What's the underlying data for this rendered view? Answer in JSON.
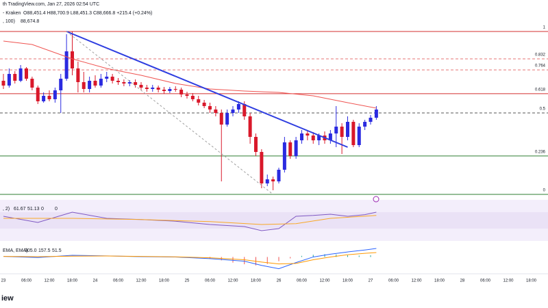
{
  "chart_data": {
    "type": "candlestick",
    "header": "th TradingView.com, Jan 27, 2026 02:54 UTC",
    "symbol": "- Kraken",
    "ohlc_text": "O88,451.4 H88,700.9 L88,451.3 C88,666.8 +215.4 (+0.24%)",
    "ma_label": ", 100)",
    "ma_value": "88,674.8",
    "rsi_label": ", 2)",
    "rsi_values_text": [
      "61.67",
      "51.13",
      "0",
      "0"
    ],
    "macd_label": "EMA, EMA)",
    "macd_values_text": [
      "305.0",
      "157.5",
      "51.5"
    ],
    "footer": "iew",
    "up_color": "#2a2ae0",
    "down_color": "#d9182a",
    "ylim": [
      86780,
      91100
    ],
    "ohlc": [
      [
        89330,
        89480,
        89150,
        89225
      ],
      [
        89225,
        89600,
        89180,
        89480
      ],
      [
        89480,
        89540,
        89270,
        89330
      ],
      [
        89330,
        89675,
        89300,
        89600
      ],
      [
        89600,
        89630,
        89330,
        89375
      ],
      [
        89375,
        89420,
        89120,
        89180
      ],
      [
        89180,
        89225,
        88820,
        88880
      ],
      [
        88880,
        89075,
        88850,
        89000
      ],
      [
        89000,
        89120,
        88880,
        88925
      ],
      [
        88925,
        89180,
        88850,
        89120
      ],
      [
        89120,
        89480,
        88625,
        89375
      ],
      [
        89375,
        90350,
        89330,
        89975
      ],
      [
        89975,
        90410,
        89450,
        89600
      ],
      [
        89600,
        89750,
        89075,
        89300
      ],
      [
        89300,
        89525,
        89075,
        89150
      ],
      [
        89150,
        89420,
        89075,
        89330
      ],
      [
        89330,
        89450,
        89180,
        89225
      ],
      [
        89225,
        89480,
        89180,
        89375
      ],
      [
        89375,
        89525,
        89300,
        89420
      ],
      [
        89420,
        89480,
        89270,
        89330
      ],
      [
        89330,
        89390,
        89240,
        89300
      ],
      [
        89300,
        89360,
        89210,
        89270
      ],
      [
        89270,
        89345,
        89210,
        89300
      ],
      [
        89300,
        89360,
        89180,
        89240
      ],
      [
        89240,
        89300,
        89120,
        89180
      ],
      [
        89180,
        89240,
        89090,
        89150
      ],
      [
        89150,
        89240,
        89090,
        89180
      ],
      [
        89180,
        89225,
        89075,
        89135
      ],
      [
        89135,
        89195,
        89045,
        89105
      ],
      [
        89105,
        89195,
        89060,
        89150
      ],
      [
        89150,
        89210,
        89090,
        89135
      ],
      [
        89135,
        89180,
        88970,
        89030
      ],
      [
        89030,
        89090,
        88940,
        89000
      ],
      [
        89000,
        89060,
        88880,
        88925
      ],
      [
        88925,
        89000,
        88790,
        88850
      ],
      [
        88850,
        88910,
        88730,
        88775
      ],
      [
        88775,
        88850,
        88625,
        88700
      ],
      [
        88700,
        88775,
        88550,
        88625
      ],
      [
        88625,
        88700,
        87125,
        88370
      ],
      [
        88370,
        88700,
        88325,
        88625
      ],
      [
        88625,
        88775,
        88550,
        88700
      ],
      [
        88700,
        88880,
        88625,
        88820
      ],
      [
        88820,
        88880,
        88475,
        88550
      ],
      [
        88550,
        88625,
        87950,
        88100
      ],
      [
        88100,
        88175,
        87680,
        87770
      ],
      [
        87770,
        87830,
        86975,
        87080
      ],
      [
        87080,
        87275,
        87020,
        87170
      ],
      [
        87170,
        87230,
        86930,
        87125
      ],
      [
        87125,
        87425,
        87080,
        87380
      ],
      [
        87380,
        88100,
        87320,
        87980
      ],
      [
        87980,
        88025,
        87620,
        87680
      ],
      [
        87680,
        88100,
        87620,
        88025
      ],
      [
        88025,
        88250,
        87950,
        88175
      ],
      [
        88175,
        88250,
        88025,
        88130
      ],
      [
        88130,
        88205,
        87950,
        88025
      ],
      [
        88025,
        88175,
        87920,
        88130
      ],
      [
        88130,
        88220,
        87950,
        88025
      ],
      [
        88025,
        88250,
        87950,
        88175
      ],
      [
        88175,
        88775,
        87875,
        88325
      ],
      [
        88325,
        88400,
        87725,
        88100
      ],
      [
        88100,
        88550,
        88025,
        88430
      ],
      [
        88430,
        88475,
        87875,
        87920
      ],
      [
        87920,
        88400,
        87875,
        88325
      ],
      [
        88325,
        88475,
        88250,
        88430
      ],
      [
        88430,
        88580,
        88370,
        88520
      ],
      [
        88520,
        88775,
        88475,
        88700
      ]
    ],
    "lines": [
      {
        "color": "#ef5350",
        "width": 1,
        "dash": false,
        "x": [
          0,
          5,
          12,
          18,
          24,
          30,
          36,
          42,
          48,
          54,
          60,
          65
        ],
        "values": [
          90200,
          90125,
          89810,
          89600,
          89450,
          89270,
          89150,
          89105,
          89075,
          89000,
          88850,
          88730
        ]
      },
      {
        "color": "#2e3de0",
        "width": 2,
        "dash": false,
        "x": [
          11,
          60
        ],
        "values": [
          90410,
          87875
        ]
      },
      {
        "color": "#9e9e9e",
        "width": 1,
        "dash": true,
        "x": [
          11,
          47
        ],
        "values": [
          90410,
          86840
        ]
      }
    ],
    "fib": {
      "anchors": [
        86840,
        90410
      ],
      "levels": [
        {
          "ratio": 1,
          "color": "#d32f2f",
          "dash": false
        },
        {
          "ratio": 0.832,
          "color": "#e57373",
          "dash": true
        },
        {
          "ratio": 0.764,
          "color": "#e57373",
          "dash": true
        },
        {
          "ratio": 0.618,
          "color": "#d32f2f",
          "dash": false
        },
        {
          "ratio": 0.5,
          "color": "#555555",
          "dash": true
        },
        {
          "ratio": 0.236,
          "color": "#2e7d32",
          "dash": false
        },
        {
          "ratio": 0,
          "color": "#2e7d32",
          "dash": false
        }
      ]
    },
    "rsi": {
      "ylim": [
        0,
        100
      ],
      "band": [
        30,
        70
      ],
      "series": [
        {
          "color": "#7e57c2",
          "x": [
            0,
            6,
            12,
            18,
            24,
            30,
            36,
            42,
            45,
            48,
            51,
            54,
            57,
            60,
            63,
            65
          ],
          "values": [
            60,
            45,
            70,
            55,
            52,
            48,
            40,
            35,
            25,
            30,
            60,
            62,
            65,
            60,
            64,
            70
          ]
        },
        {
          "color": "#f9a825",
          "x": [
            0,
            12,
            24,
            36,
            45,
            51,
            57,
            65
          ],
          "values": [
            55,
            55,
            52,
            47,
            40,
            42,
            55,
            62
          ]
        }
      ]
    },
    "macd": {
      "ylim": [
        -600,
        500
      ],
      "series": [
        {
          "color": "#2962ff",
          "x": [
            0,
            6,
            12,
            18,
            24,
            30,
            36,
            42,
            45,
            48,
            51,
            54,
            57,
            60,
            63,
            65
          ],
          "values": [
            20,
            -20,
            60,
            40,
            10,
            0,
            -60,
            -150,
            -300,
            -420,
            -200,
            0,
            100,
            180,
            250,
            305
          ]
        },
        {
          "color": "#ff9800",
          "x": [
            0,
            6,
            12,
            18,
            24,
            30,
            36,
            42,
            45,
            48,
            51,
            54,
            57,
            60,
            63,
            65
          ],
          "values": [
            20,
            10,
            30,
            35,
            20,
            5,
            -30,
            -100,
            -180,
            -250,
            -230,
            -100,
            0,
            80,
            130,
            157.5
          ]
        }
      ],
      "histogram": {
        "x": [
          36,
          38,
          40,
          42,
          44,
          46,
          48,
          50,
          52,
          54,
          56,
          58,
          60,
          62,
          64
        ],
        "values": [
          -50,
          -120,
          -200,
          -260,
          -300,
          -250,
          -150,
          -50,
          40,
          80,
          100,
          90,
          60,
          50,
          60
        ]
      }
    },
    "xticks": [
      "23",
      "06:00",
      "12:00",
      "18:00",
      "24",
      "06:00",
      "12:00",
      "18:00",
      "25",
      "06:00",
      "12:00",
      "18:00",
      "26",
      "06:00",
      "12:00",
      "18:00",
      "27",
      "06:00",
      "12:00",
      "18:00",
      "28",
      "06:00",
      "12:00",
      "18:00"
    ]
  }
}
